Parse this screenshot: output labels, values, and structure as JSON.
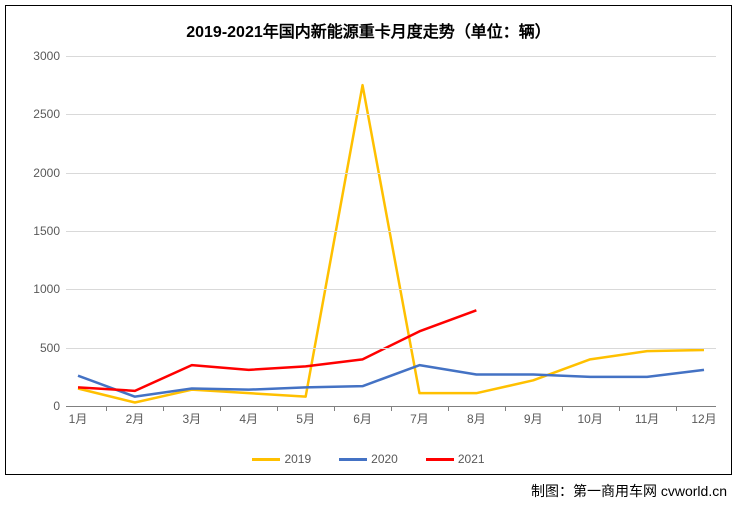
{
  "chart": {
    "type": "line",
    "title": "2019-2021年国内新能源重卡月度走势（单位：辆）",
    "title_fontsize": 16,
    "title_fontweight": "bold",
    "background_color": "#ffffff",
    "border_color": "#000000",
    "grid_color": "#d9d9d9",
    "axis_line_color": "#808080",
    "tick_label_color": "#595959",
    "tick_fontsize": 12,
    "categories": [
      "1月",
      "2月",
      "3月",
      "4月",
      "5月",
      "6月",
      "7月",
      "8月",
      "9月",
      "10月",
      "11月",
      "12月"
    ],
    "ylim": [
      0,
      3000
    ],
    "ytick_step": 500,
    "yticks": [
      0,
      500,
      1000,
      1500,
      2000,
      2500,
      3000
    ],
    "line_width": 2.5,
    "series": [
      {
        "name": "2019",
        "color": "#ffc000",
        "values": [
          150,
          30,
          140,
          110,
          80,
          2750,
          110,
          110,
          220,
          400,
          470,
          480
        ]
      },
      {
        "name": "2020",
        "color": "#4472c4",
        "values": [
          260,
          80,
          150,
          140,
          160,
          170,
          350,
          270,
          270,
          250,
          250,
          310
        ]
      },
      {
        "name": "2021",
        "color": "#ff0000",
        "values": [
          160,
          130,
          350,
          310,
          340,
          400,
          640,
          820
        ]
      }
    ],
    "legend_position": "bottom"
  },
  "attribution": "制图：第一商用车网 cvworld.cn"
}
